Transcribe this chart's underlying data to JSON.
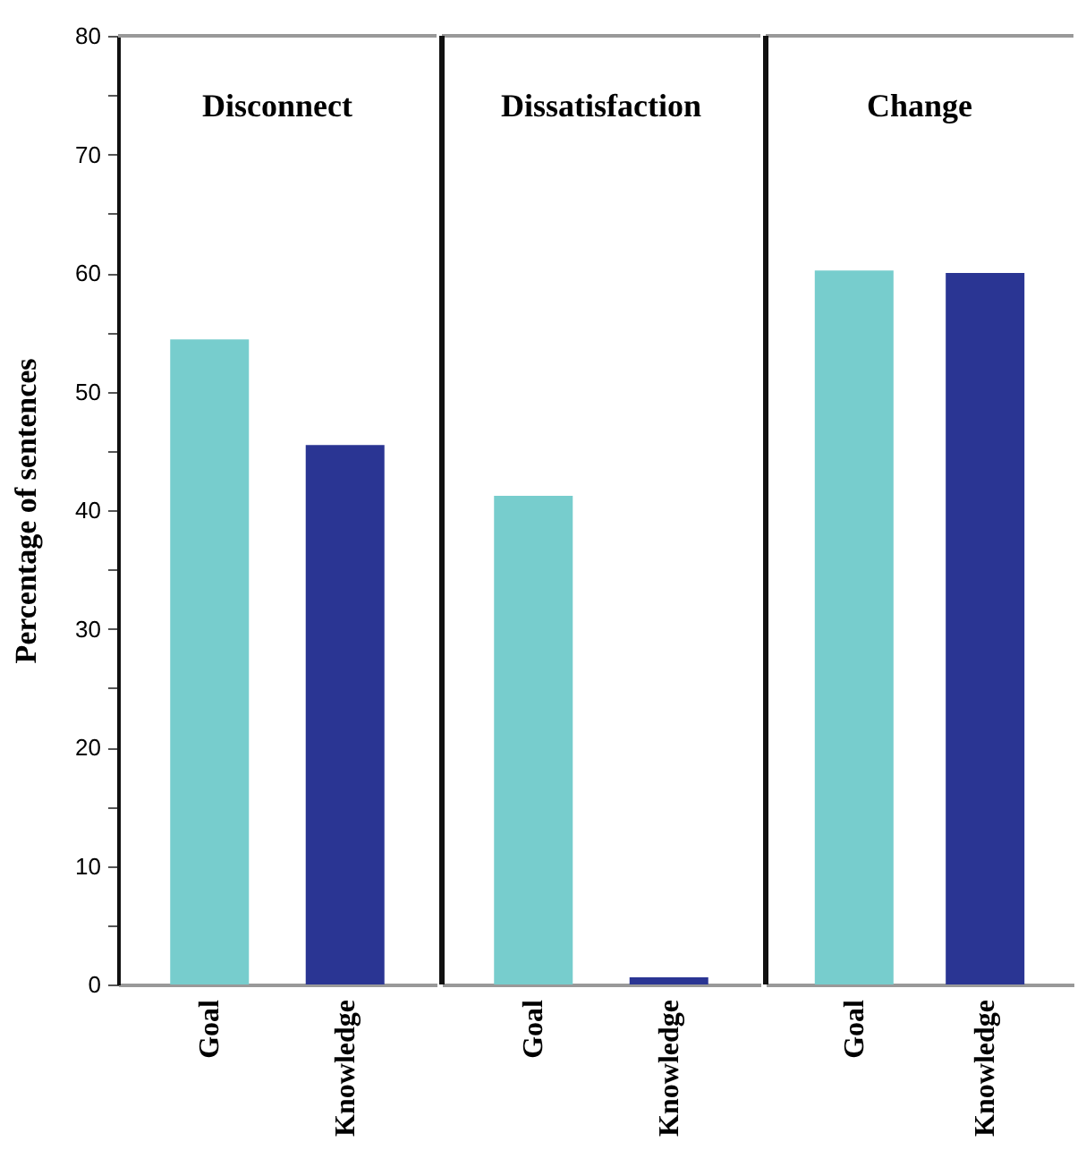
{
  "chart_data": [
    {
      "type": "bar",
      "title": "Disconnect",
      "ylabel": "Percentage of sentences",
      "categories": [
        "Goal",
        "Knowledge"
      ],
      "values": [
        54.4,
        45.5
      ],
      "colors": [
        "#77cdcd",
        "#2a3593"
      ],
      "ylim": [
        0,
        80
      ],
      "yticks": [
        0,
        {
          "value": 5,
          "label": null
        },
        10,
        {
          "value": 15,
          "label": null
        },
        20,
        {
          "value": 25,
          "label": null
        },
        30,
        {
          "value": 35,
          "label": null
        },
        40,
        {
          "value": 45,
          "label": null
        },
        50,
        {
          "value": 55,
          "label": null
        },
        60,
        {
          "value": 65,
          "label": null
        },
        70,
        {
          "value": 75,
          "label": null
        },
        80
      ],
      "grid": false
    },
    {
      "type": "bar",
      "title": "Dissatisfaction",
      "categories": [
        "Goal",
        "Knowledge"
      ],
      "values": [
        41.2,
        0.6
      ],
      "colors": [
        "#77cdcd",
        "#2a3593"
      ],
      "ylim": [
        0,
        80
      ],
      "tick_labels": "x",
      "grid": false
    },
    {
      "type": "bar",
      "title": "Change",
      "categories": [
        "Goal",
        "Knowledge"
      ],
      "values": [
        60.2,
        60.0
      ],
      "colors": [
        "#77cdcd",
        "#2a3593"
      ],
      "ylim": [
        0,
        80
      ],
      "tick_labels": "x",
      "grid": false
    }
  ]
}
